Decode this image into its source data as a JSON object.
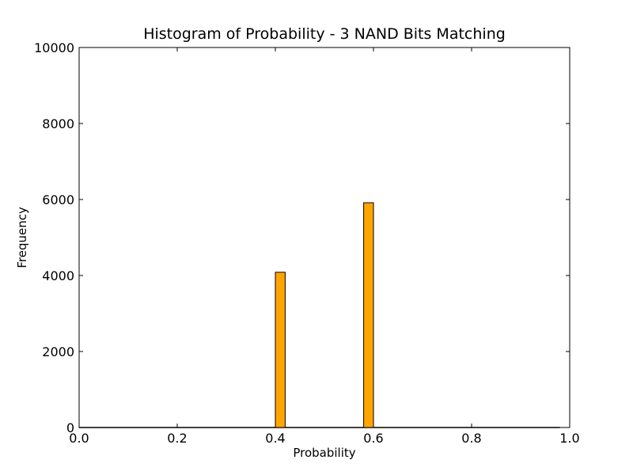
{
  "chart_data": {
    "type": "bar",
    "title": "Histogram of Probability - 3 NAND Bits Matching",
    "xlabel": "Probability",
    "ylabel": "Frequency",
    "xlim": [
      0.0,
      1.0
    ],
    "ylim": [
      0,
      10000
    ],
    "grid": false,
    "bin_width": 0.02,
    "bar_color": "#ffa500",
    "bar_edge_color": "#000000",
    "xticks": [
      "0.0",
      "0.2",
      "0.4",
      "0.6",
      "0.8",
      "1.0"
    ],
    "yticks": [
      "0",
      "2000",
      "4000",
      "6000",
      "8000",
      "10000"
    ],
    "bins": [
      {
        "x": 0.4,
        "value": 4085
      },
      {
        "x": 0.58,
        "value": 5915
      }
    ],
    "baseline_end": 0.98
  }
}
